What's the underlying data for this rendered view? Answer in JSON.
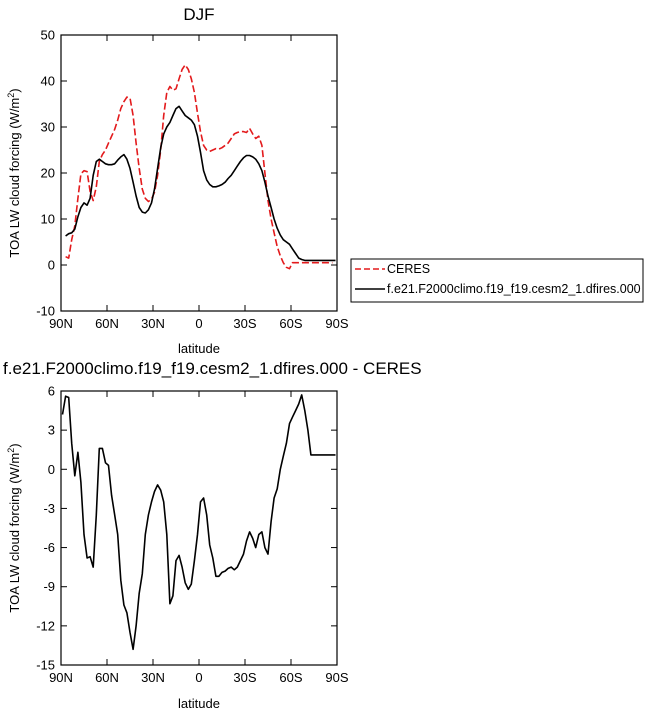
{
  "chart_data": [
    {
      "type": "line",
      "title": "DJF",
      "xlabel": "latitude",
      "ylabel": "TOA LW cloud forcing (W/m",
      "ylabel_sup": "2",
      "ylabel_end": ")",
      "xlim": [
        90,
        -90
      ],
      "ylim": [
        -10,
        50
      ],
      "x_ticks": [
        90,
        60,
        30,
        0,
        -30,
        -60,
        -90
      ],
      "x_tick_labels": [
        "90N",
        "60N",
        "30N",
        "0",
        "30S",
        "60S",
        "90S"
      ],
      "y_ticks": [
        -10,
        0,
        10,
        20,
        30,
        40,
        50
      ],
      "y_tick_labels": [
        "-10",
        "0",
        "10",
        "20",
        "30",
        "40",
        "50"
      ],
      "grid": false,
      "legend_position": "outside-right",
      "series": [
        {
          "name": "CERES",
          "color": "#e31a1c",
          "dash": "dashed",
          "x": [
            87,
            85,
            83,
            81,
            79,
            77,
            75,
            73,
            71,
            69,
            67,
            65,
            63,
            61,
            59,
            57,
            55,
            53,
            51,
            49,
            47,
            45,
            43,
            41,
            39,
            37,
            35,
            33,
            31,
            29,
            27,
            25,
            23,
            21,
            19,
            17,
            15,
            13,
            11,
            9,
            7,
            5,
            3,
            1,
            -1,
            -3,
            -5,
            -7,
            -9,
            -11,
            -13,
            -15,
            -17,
            -19,
            -21,
            -23,
            -25,
            -27,
            -29,
            -31,
            -33,
            -35,
            -37,
            -39,
            -41,
            -43,
            -45,
            -47,
            -49,
            -51,
            -53,
            -55,
            -57,
            -59,
            -61,
            -63,
            -65,
            -67,
            -69,
            -71,
            -73,
            -75,
            -77,
            -79,
            -81,
            -83,
            -85,
            -87
          ],
          "y": [
            1.8,
            1.5,
            5.5,
            8.5,
            14.5,
            19.8,
            20.5,
            20.3,
            16.0,
            14.0,
            17.0,
            22.5,
            24.0,
            25.0,
            26.5,
            28.0,
            29.5,
            31.5,
            34.0,
            35.5,
            36.5,
            36.3,
            32.5,
            26.5,
            21.0,
            16.5,
            14.5,
            13.8,
            14.3,
            15.8,
            19.5,
            25.0,
            32.5,
            37.5,
            38.8,
            38.0,
            38.3,
            40.5,
            42.5,
            43.5,
            42.5,
            40.5,
            37.5,
            33.0,
            29.0,
            26.0,
            25.0,
            24.7,
            25.0,
            25.3,
            25.2,
            25.5,
            26.0,
            26.5,
            27.5,
            28.5,
            28.8,
            29.0,
            29.0,
            28.8,
            29.7,
            28.5,
            27.5,
            28.0,
            26.0,
            20.0,
            14.0,
            10.0,
            7.0,
            4.0,
            2.0,
            0.5,
            -0.5,
            -0.8,
            0.5,
            0.5,
            0.5,
            0.5,
            0.5,
            0.5,
            0.5,
            0.5,
            0.5,
            0.5,
            0.5,
            0.5,
            0.5,
            0.5
          ]
        },
        {
          "name": "f.e21.F2000climo.f19_f19.cesm2_1.dfires.000",
          "color": "#000000",
          "dash": "solid",
          "x": [
            87,
            85,
            83,
            81,
            79,
            77,
            75,
            73,
            71,
            69,
            67,
            65,
            63,
            61,
            59,
            57,
            55,
            53,
            51,
            49,
            47,
            45,
            43,
            41,
            39,
            37,
            35,
            33,
            31,
            29,
            27,
            25,
            23,
            21,
            19,
            17,
            15,
            13,
            11,
            9,
            7,
            5,
            3,
            1,
            -1,
            -3,
            -5,
            -7,
            -9,
            -11,
            -13,
            -15,
            -17,
            -19,
            -21,
            -23,
            -25,
            -27,
            -29,
            -31,
            -33,
            -35,
            -37,
            -39,
            -41,
            -43,
            -45,
            -47,
            -49,
            -51,
            -53,
            -55,
            -57,
            -59,
            -61,
            -63,
            -65,
            -67,
            -69,
            -71,
            -73,
            -75,
            -77,
            -79,
            -81,
            -83,
            -85,
            -87,
            -89
          ],
          "y": [
            6.3,
            6.8,
            7.0,
            7.8,
            10.5,
            12.5,
            13.5,
            13.0,
            14.5,
            19.5,
            22.5,
            23.0,
            22.5,
            22.0,
            21.8,
            21.8,
            22.0,
            22.8,
            23.5,
            24.0,
            23.0,
            21.0,
            18.0,
            15.0,
            12.5,
            11.5,
            11.3,
            12.0,
            13.5,
            16.5,
            21.0,
            25.5,
            28.5,
            30.0,
            31.0,
            32.5,
            34.0,
            34.5,
            33.5,
            32.5,
            32.0,
            31.5,
            30.5,
            28.0,
            24.5,
            20.5,
            18.5,
            17.5,
            17.0,
            17.0,
            17.2,
            17.5,
            18.0,
            18.8,
            19.5,
            20.5,
            21.5,
            22.5,
            23.3,
            23.8,
            23.8,
            23.5,
            23.0,
            22.0,
            20.5,
            18.0,
            15.0,
            12.5,
            10.0,
            8.0,
            6.5,
            5.5,
            5.0,
            4.5,
            3.5,
            2.5,
            1.5,
            1.2,
            1.0,
            1.0,
            1.0,
            1.0,
            1.0,
            1.0,
            1.0,
            1.0,
            1.0,
            1.0,
            1.0
          ]
        }
      ]
    },
    {
      "type": "line",
      "title": "f.e21.F2000climo.f19_f19.cesm2_1.dfires.000 - CERES",
      "xlabel": "latitude",
      "ylabel": "TOA LW cloud forcing (W/m",
      "ylabel_sup": "2",
      "ylabel_end": ")",
      "xlim": [
        90,
        -90
      ],
      "ylim": [
        -15,
        6
      ],
      "x_ticks": [
        90,
        60,
        30,
        0,
        -30,
        -60,
        -90
      ],
      "x_tick_labels": [
        "90N",
        "60N",
        "30N",
        "0",
        "30S",
        "60S",
        "90S"
      ],
      "y_ticks": [
        -15,
        -12,
        -9,
        -6,
        -3,
        0,
        3,
        6
      ],
      "y_tick_labels": [
        "-15",
        "-12",
        "-9",
        "-6",
        "-3",
        "0",
        "3",
        "6"
      ],
      "grid": false,
      "series": [
        {
          "color": "#000000",
          "dash": "solid",
          "x": [
            89,
            87,
            85,
            83,
            81,
            79,
            77,
            75,
            73,
            71,
            69,
            67,
            65,
            63,
            61,
            59,
            57,
            55,
            53,
            51,
            49,
            47,
            45,
            43,
            41,
            39,
            37,
            35,
            33,
            31,
            29,
            27,
            25,
            23,
            21,
            19,
            17,
            15,
            13,
            11,
            9,
            7,
            5,
            3,
            1,
            -1,
            -3,
            -5,
            -7,
            -9,
            -11,
            -13,
            -15,
            -17,
            -19,
            -21,
            -23,
            -25,
            -27,
            -29,
            -31,
            -33,
            -35,
            -37,
            -39,
            -41,
            -43,
            -45,
            -47,
            -49,
            -51,
            -53,
            -55,
            -57,
            -59,
            -61,
            -63,
            -65,
            -67,
            -69,
            -71,
            -73,
            -75,
            -77,
            -79,
            -81,
            -83,
            -85,
            -87,
            -89
          ],
          "y": [
            4.2,
            5.6,
            5.5,
            2.0,
            -0.5,
            1.3,
            -1.0,
            -5.0,
            -6.8,
            -6.7,
            -7.5,
            -3.5,
            1.6,
            1.6,
            0.5,
            0.3,
            -2.0,
            -3.5,
            -5.0,
            -8.5,
            -10.4,
            -11.0,
            -12.5,
            -13.8,
            -12.0,
            -9.5,
            -8.0,
            -5.0,
            -3.5,
            -2.5,
            -1.7,
            -1.2,
            -1.6,
            -2.5,
            -5.0,
            -10.3,
            -9.7,
            -7.0,
            -6.6,
            -7.5,
            -8.7,
            -9.2,
            -8.8,
            -7.0,
            -5.0,
            -2.5,
            -2.2,
            -3.5,
            -5.8,
            -6.8,
            -8.2,
            -8.2,
            -7.9,
            -7.8,
            -7.6,
            -7.5,
            -7.7,
            -7.5,
            -7.0,
            -6.5,
            -5.5,
            -4.8,
            -5.3,
            -6.0,
            -5.0,
            -4.8,
            -6.0,
            -6.5,
            -4.0,
            -2.2,
            -1.5,
            0.0,
            1.0,
            2.0,
            3.5,
            4.0,
            4.5,
            5.0,
            5.7,
            4.5,
            3.0,
            1.1,
            1.1,
            1.1,
            1.1,
            1.1,
            1.1,
            1.1,
            1.1,
            1.1
          ]
        }
      ]
    }
  ]
}
